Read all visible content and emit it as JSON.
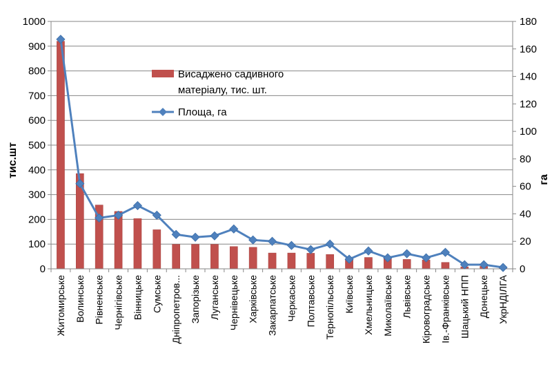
{
  "chart_data": {
    "type": "bar+line",
    "categories": [
      "Житомирське",
      "Волинське",
      "Рівненське",
      "Чернігівське",
      "Вінницьке",
      "Сумське",
      "Дніпропетров...",
      "Запорізьке",
      "Луганське",
      "Чернівецьке",
      "Харківське",
      "Закарпатське",
      "Черкаське",
      "Полтавське",
      "Тернопільське",
      "Київське",
      "Хмельницьке",
      "Миколаївське",
      "Львівське",
      "Кіровоградське",
      "Ів.-Франківське",
      "Шацький НПП",
      "Донецьке",
      "УкрНДІЛГА"
    ],
    "series": [
      {
        "name": "Висаджено садивного матеріалу, тис. шт.",
        "type": "bar",
        "axis": "left",
        "color": "#c0504d",
        "values": [
          920,
          385,
          258,
          232,
          203,
          158,
          99,
          99,
          99,
          90,
          87,
          64,
          64,
          63,
          58,
          40,
          46,
          45,
          38,
          36,
          26,
          8,
          10,
          3
        ]
      },
      {
        "name": "Площа, га",
        "type": "line",
        "axis": "right",
        "color": "#4f81bd",
        "values": [
          167,
          62,
          37,
          39,
          46,
          39,
          25,
          23,
          24,
          29,
          21,
          20,
          17,
          14,
          18,
          7,
          13,
          8,
          11,
          8,
          12,
          3,
          3,
          1
        ]
      }
    ],
    "ylabel": "тис.шт",
    "y2label": "га",
    "ylim": [
      0,
      1000
    ],
    "y2lim": [
      0,
      180
    ],
    "yticks": [
      "0",
      "100",
      "200",
      "300",
      "400",
      "500",
      "600",
      "700",
      "800",
      "900",
      "1000"
    ],
    "y2ticks": [
      "0",
      "20",
      "40",
      "60",
      "80",
      "100",
      "120",
      "140",
      "160",
      "180"
    ],
    "legend": {
      "bar_lines": [
        "Висаджено садивного",
        "матеріалу, тис. шт."
      ],
      "line_label": "Площа, га"
    },
    "grid": true
  }
}
